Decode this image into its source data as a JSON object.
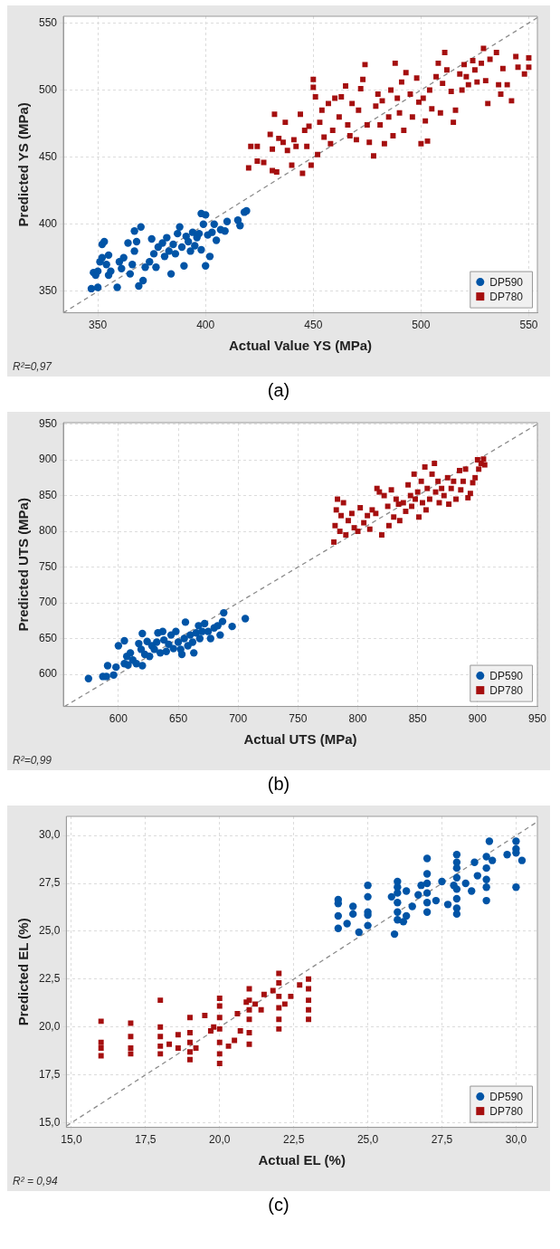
{
  "chart_data": [
    {
      "type": "scatter",
      "xlabel": "Actual Value YS (MPa)",
      "ylabel": "Predicted YS (MPa)",
      "xlim": [
        334,
        554
      ],
      "ylim": [
        334,
        555
      ],
      "xticks": [
        350,
        400,
        450,
        500,
        550
      ],
      "yticks": [
        350,
        400,
        450,
        500,
        550
      ],
      "grid": true,
      "legend": "bottom right",
      "annotations": [
        "R²=0,97",
        "(a)"
      ],
      "series": [
        {
          "name": "DP590",
          "color": "#0054a6",
          "marker": "circle",
          "x": [
            347,
            350,
            348,
            349,
            350,
            351,
            352,
            352,
            353,
            354,
            355,
            355,
            356,
            359,
            360,
            361,
            362,
            364,
            365,
            366,
            367,
            367,
            368,
            369,
            370,
            371,
            372,
            374,
            375,
            376,
            377,
            378,
            380,
            381,
            382,
            383,
            384,
            385,
            386,
            387,
            388,
            389,
            390,
            391,
            392,
            393,
            394,
            395,
            396,
            397,
            398,
            398,
            399,
            400,
            400,
            401,
            402,
            403,
            404,
            405,
            407,
            409,
            410,
            415,
            416,
            418,
            419
          ],
          "values": [
            352,
            353,
            364,
            362,
            365,
            372,
            375,
            385,
            387,
            370,
            362,
            377,
            365,
            353,
            372,
            367,
            375,
            386,
            363,
            370,
            380,
            395,
            387,
            354,
            398,
            358,
            368,
            372,
            389,
            378,
            368,
            383,
            386,
            376,
            390,
            380,
            363,
            385,
            378,
            393,
            398,
            383,
            369,
            391,
            387,
            380,
            394,
            384,
            390,
            393,
            381,
            408,
            400,
            369,
            407,
            392,
            376,
            394,
            400,
            388,
            396,
            395,
            402,
            403,
            399,
            409,
            410
          ]
        },
        {
          "name": "DP780",
          "color": "#a50f0f",
          "marker": "square",
          "x": [
            420,
            421,
            424,
            424,
            427,
            430,
            431,
            431,
            432,
            433,
            434,
            436,
            437,
            438,
            440,
            441,
            442,
            444,
            445,
            446,
            447,
            448,
            449,
            450,
            450,
            451,
            452,
            453,
            454,
            455,
            457,
            458,
            459,
            460,
            462,
            463,
            465,
            466,
            467,
            468,
            470,
            471,
            472,
            473,
            474,
            475,
            476,
            478,
            479,
            480,
            481,
            482,
            483,
            485,
            486,
            487,
            488,
            489,
            490,
            491,
            492,
            493,
            495,
            496,
            498,
            499,
            500,
            501,
            502,
            503,
            504,
            505,
            507,
            508,
            509,
            510,
            511,
            512,
            514,
            515,
            516,
            518,
            519,
            520,
            521,
            522,
            524,
            525,
            526,
            528,
            529,
            530,
            531,
            532,
            535,
            536,
            537,
            538,
            540,
            542,
            544,
            545,
            548,
            550,
            550
          ],
          "values": [
            442,
            458,
            458,
            447,
            446,
            467,
            440,
            456,
            482,
            439,
            464,
            461,
            476,
            455,
            444,
            463,
            458,
            482,
            438,
            470,
            458,
            473,
            444,
            502,
            508,
            495,
            452,
            476,
            485,
            465,
            490,
            460,
            470,
            494,
            480,
            495,
            503,
            474,
            466,
            490,
            463,
            485,
            501,
            508,
            519,
            474,
            461,
            451,
            488,
            497,
            474,
            492,
            460,
            480,
            500,
            466,
            520,
            494,
            483,
            506,
            470,
            513,
            497,
            480,
            509,
            491,
            460,
            494,
            477,
            462,
            500,
            486,
            510,
            520,
            483,
            505,
            528,
            515,
            499,
            476,
            485,
            512,
            500,
            519,
            510,
            504,
            522,
            515,
            506,
            520,
            531,
            507,
            490,
            523,
            528,
            504,
            497,
            516,
            504,
            492,
            525,
            517,
            512,
            524,
            517
          ]
        },
        {
          "type": "line",
          "color": "#8c8c8c",
          "marker": "none",
          "line_style": "dashed",
          "x": [
            334,
            554
          ],
          "values": [
            334,
            554
          ]
        }
      ]
    },
    {
      "type": "scatter",
      "xlabel": "Actual UTS (MPa)",
      "ylabel": "Predicted UTS (MPa)",
      "xlim": [
        554,
        950
      ],
      "ylim": [
        555,
        952
      ],
      "xticks": [
        600,
        650,
        700,
        750,
        800,
        850,
        900,
        950
      ],
      "yticks": [
        600,
        650,
        700,
        750,
        800,
        850,
        900,
        950
      ],
      "grid": true,
      "legend": "bottom right",
      "annotations": [
        "R²=0,99",
        "(b)"
      ],
      "series": [
        {
          "name": "DP590",
          "color": "#0054a6",
          "marker": "circle",
          "x": [
            575,
            587,
            590,
            591,
            596,
            598,
            600,
            605,
            605,
            607,
            608,
            610,
            612,
            615,
            617,
            619,
            620,
            620,
            622,
            624,
            626,
            628,
            630,
            632,
            633,
            635,
            637,
            638,
            640,
            642,
            644,
            646,
            648,
            650,
            652,
            653,
            655,
            656,
            658,
            660,
            662,
            663,
            665,
            667,
            668,
            670,
            672,
            675,
            677,
            680,
            683,
            685,
            687,
            688,
            695,
            706
          ],
          "values": [
            594,
            597,
            597,
            612,
            599,
            610,
            640,
            647,
            615,
            625,
            613,
            630,
            620,
            615,
            643,
            635,
            657,
            612,
            628,
            646,
            625,
            640,
            635,
            645,
            658,
            630,
            660,
            648,
            632,
            642,
            655,
            636,
            660,
            645,
            635,
            628,
            650,
            673,
            640,
            655,
            645,
            630,
            658,
            668,
            650,
            660,
            671,
            660,
            650,
            665,
            668,
            655,
            674,
            686,
            667,
            678
          ]
        },
        {
          "name": "DP780",
          "color": "#a50f0f",
          "marker": "square",
          "x": [
            780,
            781,
            782,
            783,
            785,
            786,
            788,
            790,
            792,
            795,
            797,
            800,
            802,
            805,
            808,
            810,
            812,
            815,
            816,
            818,
            820,
            822,
            825,
            826,
            828,
            830,
            832,
            834,
            835,
            838,
            840,
            842,
            844,
            845,
            847,
            848,
            850,
            851,
            853,
            854,
            856,
            857,
            858,
            860,
            862,
            864,
            865,
            867,
            868,
            870,
            872,
            875,
            876,
            878,
            880,
            882,
            885,
            886,
            888,
            890,
            892,
            894,
            896,
            898,
            900,
            901,
            903,
            905,
            906
          ],
          "values": [
            785,
            808,
            830,
            845,
            800,
            822,
            840,
            795,
            815,
            825,
            805,
            800,
            833,
            812,
            822,
            803,
            830,
            825,
            860,
            855,
            795,
            850,
            835,
            808,
            858,
            820,
            845,
            838,
            815,
            840,
            828,
            865,
            850,
            835,
            880,
            845,
            855,
            820,
            870,
            840,
            890,
            830,
            860,
            845,
            880,
            895,
            855,
            870,
            840,
            860,
            850,
            875,
            838,
            860,
            870,
            845,
            885,
            858,
            870,
            887,
            847,
            853,
            868,
            875,
            900,
            887,
            895,
            901,
            893
          ]
        },
        {
          "type": "line",
          "color": "#8c8c8c",
          "marker": "none",
          "line_style": "dashed",
          "x": [
            555,
            950
          ],
          "values": [
            555,
            950
          ]
        }
      ]
    },
    {
      "type": "scatter",
      "xlabel": "Actual EL (%)",
      "ylabel": "Predicted EL (%)",
      "xlim": [
        14.83,
        30.72
      ],
      "ylim": [
        14.76,
        31
      ],
      "xticks": [
        {
          "value": 15,
          "label": "15,0"
        },
        {
          "value": 17.5,
          "label": "17,5"
        },
        {
          "value": 20,
          "label": "20,0"
        },
        {
          "value": 22.5,
          "label": "22,5"
        },
        {
          "value": 25,
          "label": "25,0"
        },
        {
          "value": 27.5,
          "label": "27,5"
        },
        {
          "value": 30,
          "label": "30,0"
        }
      ],
      "yticks": [
        {
          "value": 15,
          "label": "15,0"
        },
        {
          "value": 17.5,
          "label": "17,5"
        },
        {
          "value": 20,
          "label": "20,0"
        },
        {
          "value": 22.5,
          "label": "22,5"
        },
        {
          "value": 25,
          "label": "25,0"
        },
        {
          "value": 27.5,
          "label": "27,5"
        },
        {
          "value": 30,
          "label": "30,0"
        }
      ],
      "grid": true,
      "legend": "bottom right",
      "annotations": [
        "R² = 0,94",
        "(c)"
      ],
      "series": [
        {
          "name": "DP590",
          "color": "#0054a6",
          "marker": "circle",
          "x": [
            24,
            24,
            24,
            24,
            24.3,
            24.5,
            24.5,
            24.7,
            25,
            25,
            25,
            25,
            25,
            25.8,
            25.9,
            26,
            26,
            26,
            26,
            26,
            26,
            26.2,
            26.3,
            26.3,
            26.5,
            26.7,
            26.8,
            27,
            27,
            27,
            27,
            27,
            27,
            27.3,
            27.5,
            27.7,
            27.9,
            28,
            28,
            28,
            28,
            28,
            28,
            28,
            28,
            28.3,
            28.5,
            28.6,
            28.7,
            29,
            29,
            29,
            29,
            29,
            29.1,
            29.2,
            29.7,
            30,
            30,
            30,
            30,
            30.2
          ],
          "values": [
            25.15,
            25.8,
            26.45,
            26.65,
            25.4,
            25.9,
            26.3,
            24.95,
            25.3,
            25.85,
            26,
            26.8,
            27.4,
            26.8,
            24.85,
            25.6,
            26,
            26.5,
            27,
            27.3,
            27.6,
            25.5,
            25.8,
            27.1,
            26.3,
            26.9,
            27.4,
            26,
            26.5,
            27,
            27.5,
            28,
            28.8,
            26.6,
            27.6,
            26.4,
            27.4,
            25.9,
            26.2,
            26.7,
            27.2,
            27.8,
            28.3,
            28.6,
            29,
            27.5,
            27.1,
            28.6,
            27.9,
            26.6,
            27.3,
            27.7,
            28.3,
            28.9,
            29.7,
            28.7,
            29,
            27.3,
            29.1,
            29.3,
            29.7,
            28.7
          ]
        },
        {
          "name": "DP780",
          "color": "#a50f0f",
          "marker": "square",
          "x": [
            16,
            16,
            16,
            16,
            17,
            17,
            17,
            17,
            18,
            18,
            18,
            18,
            18,
            18.3,
            18.6,
            18.6,
            19,
            19,
            19,
            19,
            19,
            19.2,
            19.5,
            19.7,
            19.8,
            20,
            20,
            20,
            20,
            20,
            20,
            20,
            20.3,
            20.5,
            20.6,
            20.7,
            20.9,
            21,
            21,
            21,
            21,
            21,
            21,
            21.2,
            21.4,
            21.5,
            21.8,
            22,
            22,
            22,
            22,
            22,
            22,
            22.2,
            22.4,
            22.7,
            23,
            23,
            23,
            23,
            23
          ],
          "values": [
            18.5,
            18.9,
            19.2,
            20.3,
            18.6,
            18.9,
            19.5,
            20.2,
            18.6,
            19,
            19.5,
            20,
            21.4,
            19.1,
            19.6,
            18.9,
            18.3,
            18.7,
            19.2,
            19.7,
            20.5,
            18.9,
            20.6,
            19.8,
            20,
            18.1,
            18.6,
            19.2,
            19.9,
            20.5,
            21.1,
            21.5,
            19,
            19.3,
            20.7,
            19.8,
            21.3,
            19.1,
            19.7,
            20.4,
            20.9,
            21.4,
            22,
            21.2,
            20.9,
            21.7,
            21.9,
            19.9,
            20.4,
            21,
            21.6,
            22.3,
            22.8,
            21.2,
            21.6,
            22.2,
            20.4,
            20.9,
            21.4,
            22,
            22.5
          ]
        },
        {
          "type": "line",
          "color": "#8c8c8c",
          "marker": "none",
          "line_style": "dashed",
          "x": [
            14.83,
            30.72
          ],
          "values": [
            14.83,
            30.72
          ]
        }
      ]
    }
  ]
}
